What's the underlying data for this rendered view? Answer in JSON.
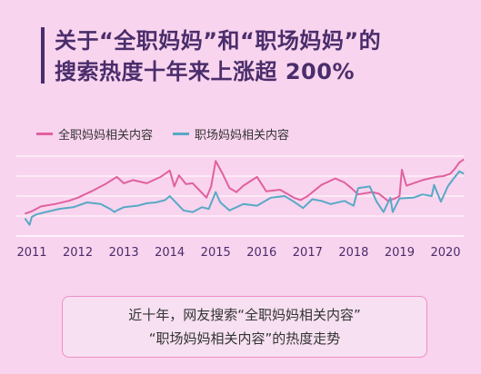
{
  "title": {
    "line1": "关于“全职妈妈”和“职场妈妈”的",
    "line2": "搜索热度十年来上涨超 200%"
  },
  "colors": {
    "background": "#f9d4ee",
    "title": "#4a2d6b",
    "series_full_time": "#e0619f",
    "series_working": "#58a9c6",
    "grid": "#ffffff"
  },
  "chart_data": {
    "type": "line",
    "title": "",
    "xlabel": "",
    "ylabel": "",
    "x_ticks": [
      "2011",
      "2012",
      "2013",
      "2014",
      "2015",
      "2016",
      "2017",
      "2018",
      "2019",
      "2020"
    ],
    "xlim": [
      2011,
      2020.4
    ],
    "ylim": [
      0,
      100
    ],
    "grid": true,
    "legend_position": "top-left",
    "series": [
      {
        "name": "全职妈妈相关内容",
        "color": "#e0619f",
        "x": [
          2010.85,
          2011.0,
          2011.2,
          2011.5,
          2011.8,
          2012.0,
          2012.3,
          2012.6,
          2012.85,
          2013.0,
          2013.2,
          2013.5,
          2013.8,
          2014.0,
          2014.1,
          2014.2,
          2014.35,
          2014.5,
          2014.7,
          2014.8,
          2014.9,
          2015.0,
          2015.15,
          2015.3,
          2015.45,
          2015.6,
          2015.9,
          2016.1,
          2016.4,
          2016.7,
          2016.85,
          2017.0,
          2017.3,
          2017.6,
          2017.8,
          2017.95,
          2018.1,
          2018.4,
          2018.55,
          2018.75,
          2018.9,
          2019.0,
          2019.05,
          2019.15,
          2019.3,
          2019.5,
          2019.65,
          2019.8,
          2019.95,
          2020.1,
          2020.2,
          2020.3,
          2020.4
        ],
        "values": [
          28,
          31,
          37,
          40,
          44,
          48,
          56,
          65,
          74,
          66,
          70,
          66,
          74,
          82,
          62,
          76,
          65,
          66,
          54,
          48,
          62,
          94,
          78,
          60,
          55,
          63,
          74,
          56,
          58,
          48,
          45,
          50,
          64,
          72,
          67,
          60,
          52,
          55,
          53,
          44,
          47,
          50,
          83,
          63,
          66,
          70,
          72,
          74,
          75,
          78,
          84,
          92,
          96
        ]
      },
      {
        "name": "职场妈妈相关内容",
        "color": "#58a9c6",
        "x": [
          2010.85,
          2010.95,
          2011.0,
          2011.1,
          2011.3,
          2011.6,
          2011.9,
          2012.2,
          2012.5,
          2012.7,
          2012.8,
          2012.85,
          2013.0,
          2013.3,
          2013.5,
          2013.7,
          2013.9,
          2014.0,
          2014.3,
          2014.5,
          2014.7,
          2014.85,
          2015.0,
          2015.1,
          2015.3,
          2015.6,
          2015.9,
          2016.2,
          2016.5,
          2016.7,
          2016.9,
          2017.1,
          2017.3,
          2017.5,
          2017.8,
          2018.0,
          2018.1,
          2018.35,
          2018.5,
          2018.65,
          2018.8,
          2018.85,
          2019.0,
          2019.3,
          2019.5,
          2019.7,
          2019.75,
          2019.9,
          2020.05,
          2020.15,
          2020.3,
          2020.4
        ],
        "values": [
          22,
          14,
          24,
          27,
          30,
          34,
          36,
          42,
          40,
          34,
          30,
          32,
          36,
          38,
          41,
          42,
          45,
          50,
          32,
          30,
          36,
          34,
          55,
          42,
          32,
          40,
          38,
          48,
          50,
          43,
          35,
          46,
          44,
          40,
          44,
          38,
          60,
          62,
          43,
          30,
          48,
          30,
          47,
          48,
          52,
          50,
          64,
          43,
          62,
          70,
          81,
          78
        ]
      }
    ]
  },
  "caption": {
    "line1": "近十年，网友搜索“全职妈妈相关内容”",
    "line2": "“职场妈妈相关内容”的热度走势"
  }
}
